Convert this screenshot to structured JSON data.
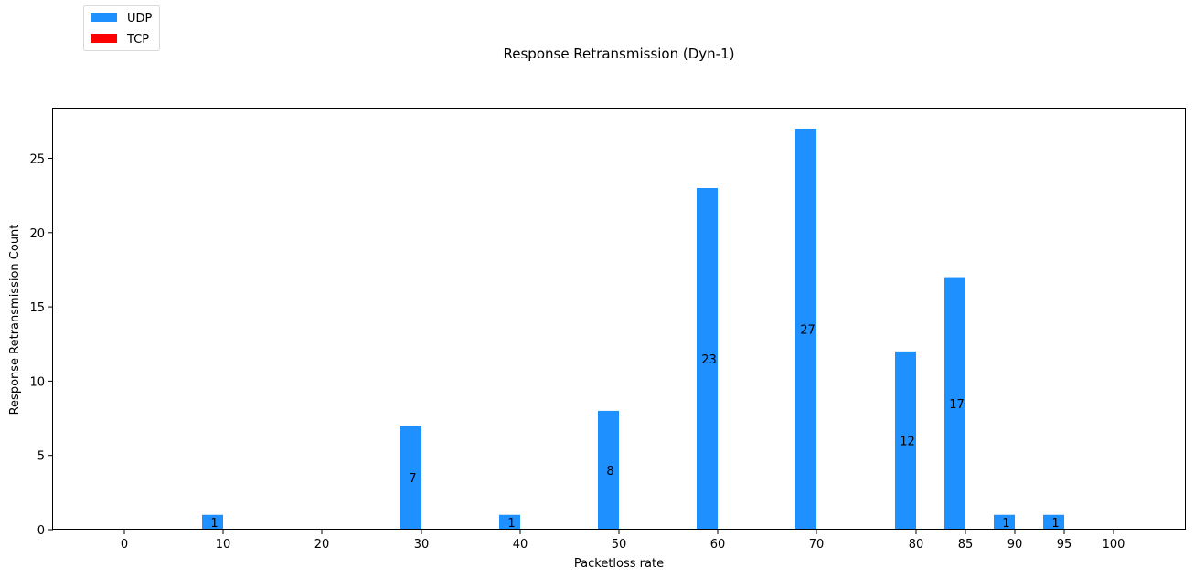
{
  "chart_data": {
    "type": "bar",
    "title": "Response Retransmission (Dyn-1)",
    "xlabel": "Packetloss rate",
    "ylabel": "Response Retransmission Count",
    "categories": [
      "0",
      "10",
      "20",
      "30",
      "40",
      "50",
      "60",
      "70",
      "80",
      "85",
      "90",
      "95",
      "100"
    ],
    "series": [
      {
        "name": "UDP",
        "color": "#1e90ff",
        "values": [
          0,
          1,
          0,
          7,
          1,
          8,
          23,
          27,
          12,
          17,
          1,
          1,
          0
        ]
      },
      {
        "name": "TCP",
        "color": "#ff0000",
        "values": [
          0,
          0,
          0,
          0,
          0,
          0,
          0,
          0,
          0,
          0,
          0,
          0,
          0
        ]
      }
    ],
    "data_labels": [
      "",
      "1",
      "",
      "7",
      "1",
      "8",
      "23",
      "27",
      "12",
      "17",
      "1",
      "1",
      ""
    ],
    "ylim": [
      0,
      28.35
    ],
    "yticks": [
      0,
      5,
      10,
      15,
      20,
      25
    ],
    "grid": false,
    "legend_position": "top-left"
  }
}
